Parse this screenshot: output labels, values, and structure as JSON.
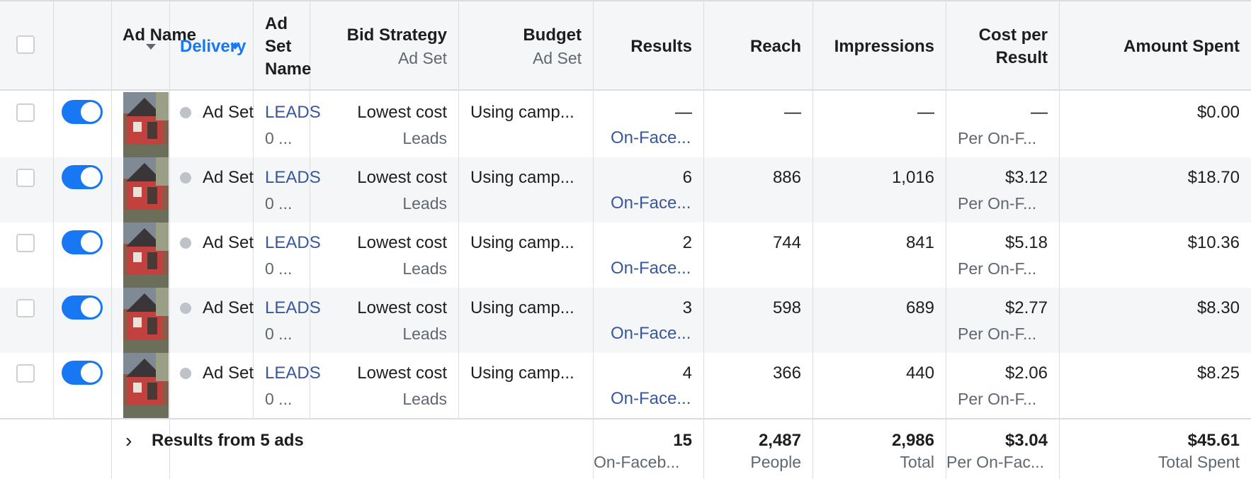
{
  "headers": {
    "ad_name": "Ad Name",
    "delivery": "Delivery",
    "ad_set_name": "Ad Set Name",
    "bid_strategy": "Bid Strategy",
    "bid_strategy_sub": "Ad Set",
    "budget": "Budget",
    "budget_sub": "Ad Set",
    "results": "Results",
    "reach": "Reach",
    "impressions": "Impressions",
    "cost_per_result": "Cost per Result",
    "amount_spent": "Amount Spent"
  },
  "rows": [
    {
      "delivery": "Ad Set",
      "adset_link": "LEADS",
      "adset_sub": "0 ...",
      "bid": "Lowest cost",
      "bid_sub": "Leads",
      "budget": "Using camp...",
      "results": "—",
      "results_sub": "On-Face...",
      "reach": "—",
      "impressions": "—",
      "cost": "—",
      "cost_sub": "Per On-F...",
      "spent": "$0.00"
    },
    {
      "delivery": "Ad Set",
      "adset_link": "LEADS",
      "adset_sub": "0 ...",
      "bid": "Lowest cost",
      "bid_sub": "Leads",
      "budget": "Using camp...",
      "results": "6",
      "results_sub": "On-Face...",
      "reach": "886",
      "impressions": "1,016",
      "cost": "$3.12",
      "cost_sub": "Per On-F...",
      "spent": "$18.70"
    },
    {
      "delivery": "Ad Set",
      "adset_link": "LEADS",
      "adset_sub": "0 ...",
      "bid": "Lowest cost",
      "bid_sub": "Leads",
      "budget": "Using camp...",
      "results": "2",
      "results_sub": "On-Face...",
      "reach": "744",
      "impressions": "841",
      "cost": "$5.18",
      "cost_sub": "Per On-F...",
      "spent": "$10.36"
    },
    {
      "delivery": "Ad Set",
      "adset_link": "LEADS",
      "adset_sub": "0 ...",
      "bid": "Lowest cost",
      "bid_sub": "Leads",
      "budget": "Using camp...",
      "results": "3",
      "results_sub": "On-Face...",
      "reach": "598",
      "impressions": "689",
      "cost": "$2.77",
      "cost_sub": "Per On-F...",
      "spent": "$8.30"
    },
    {
      "delivery": "Ad Set",
      "adset_link": "LEADS",
      "adset_sub": "0 ...",
      "bid": "Lowest cost",
      "bid_sub": "Leads",
      "budget": "Using camp...",
      "results": "4",
      "results_sub": "On-Face...",
      "reach": "366",
      "impressions": "440",
      "cost": "$2.06",
      "cost_sub": "Per On-F...",
      "spent": "$8.25"
    }
  ],
  "summary": {
    "label": "Results from 5 ads",
    "results": "15",
    "results_sub": "On-Faceb...",
    "reach": "2,487",
    "reach_sub": "People",
    "impressions": "2,986",
    "impressions_sub": "Total",
    "cost": "$3.04",
    "cost_sub": "Per On-Fac...",
    "spent": "$45.61",
    "spent_sub": "Total Spent"
  },
  "colors": {
    "toggle_on": "#1877f2",
    "link": "#385898",
    "header_bg": "#f5f6f7"
  },
  "icons": {
    "sort": "caret-down-icon",
    "expand": "chevron-right-icon",
    "status": "status-dot-icon"
  }
}
